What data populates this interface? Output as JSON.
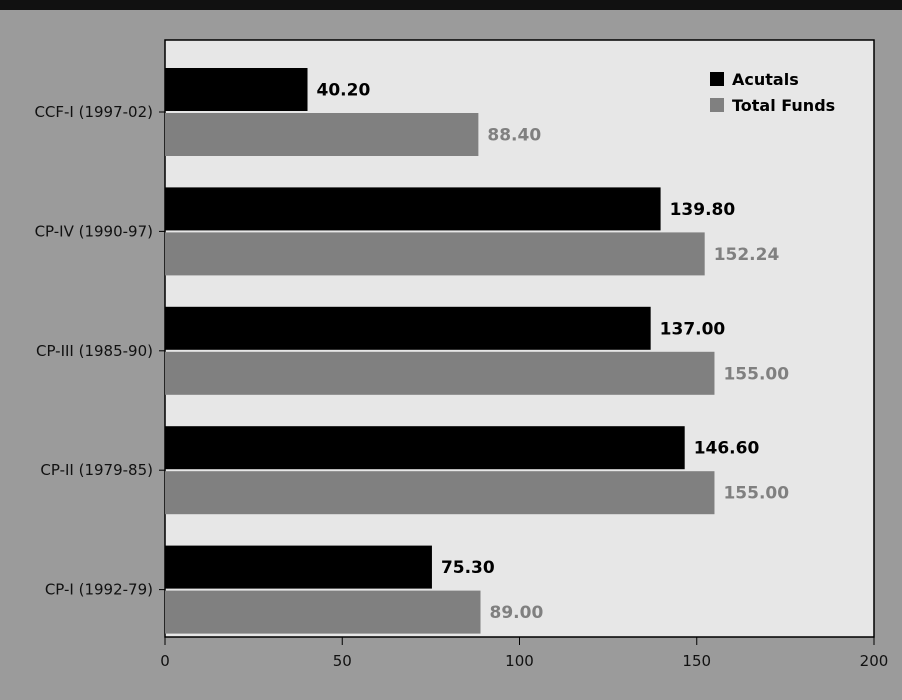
{
  "colors": {
    "top_band": "#111111",
    "background": "#9b9b9b",
    "plot_area": "#e7e7e7",
    "actuals": "#000000",
    "total_funds": "#808080"
  },
  "chart_data": {
    "type": "bar",
    "orientation": "horizontal",
    "categories": [
      "CCF-I (1997-02)",
      "CP-IV (1990-97)",
      "CP-III (1985-90)",
      "CP-II (1979-85)",
      "CP-I (1992-79)"
    ],
    "series": [
      {
        "name": "Acutals",
        "values": [
          40.2,
          139.8,
          137.0,
          146.6,
          75.3
        ],
        "value_labels": [
          "40.20",
          "139.80",
          "137.00",
          "146.60",
          "75.30"
        ],
        "color": "#000000"
      },
      {
        "name": "Total Funds",
        "values": [
          88.4,
          152.24,
          155.0,
          155.0,
          89.0
        ],
        "value_labels": [
          "88.40",
          "152.24",
          "155.00",
          "155.00",
          "89.00"
        ],
        "color": "#808080"
      }
    ],
    "xlim": [
      0,
      200
    ],
    "xticks": [
      0,
      50,
      100,
      150,
      200
    ],
    "xtick_labels": [
      "0",
      "50",
      "100",
      "150",
      "200"
    ],
    "grid": false,
    "legend_position": "top-right"
  }
}
